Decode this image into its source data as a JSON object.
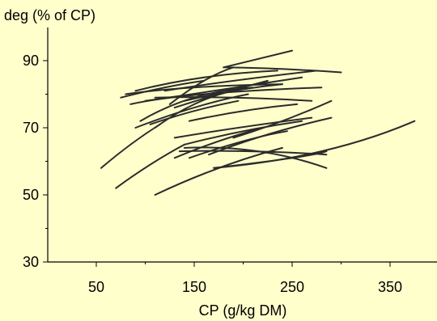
{
  "chart_data": {
    "type": "line",
    "title": "",
    "xlabel": "CP (g/kg DM)",
    "ylabel": "deg (% of CP)",
    "xlim": [
      0,
      400
    ],
    "ylim": [
      30,
      100
    ],
    "xticks": [
      50,
      150,
      250,
      350
    ],
    "xticks_minor": [
      100,
      200,
      300
    ],
    "xtick_labels": [
      "50",
      "150",
      "250",
      "350"
    ],
    "yticks": [
      30,
      50,
      70,
      90
    ],
    "yticks_minor": [
      40,
      60,
      80
    ],
    "ytick_labels": [
      "30",
      "50",
      "70",
      "90"
    ],
    "grid": false,
    "legend": false,
    "line_color": "#2b2b2b",
    "background": "#FFFFCC",
    "series": [
      {
        "x": [
          180,
          215,
          250
        ],
        "y": [
          88,
          90.5,
          93
        ]
      },
      {
        "x": [
          180,
          240,
          300
        ],
        "y": [
          88,
          87.5,
          86.5
        ]
      },
      {
        "x": [
          75,
          120,
          160
        ],
        "y": [
          79,
          82,
          84
        ]
      },
      {
        "x": [
          80,
          150,
          240
        ],
        "y": [
          80,
          82,
          83
        ]
      },
      {
        "x": [
          90,
          160,
          235
        ],
        "y": [
          81,
          85,
          87
        ]
      },
      {
        "x": [
          120,
          190,
          275
        ],
        "y": [
          81,
          84,
          87
        ]
      },
      {
        "x": [
          100,
          170,
          260
        ],
        "y": [
          78,
          81,
          85
        ]
      },
      {
        "x": [
          85,
          160,
          280
        ],
        "y": [
          77,
          80,
          82
        ]
      },
      {
        "x": [
          110,
          190,
          270
        ],
        "y": [
          79,
          79,
          78
        ]
      },
      {
        "x": [
          95,
          150,
          210
        ],
        "y": [
          72,
          79,
          82
        ]
      },
      {
        "x": [
          90,
          150,
          205
        ],
        "y": [
          70,
          76,
          80
        ]
      },
      {
        "x": [
          125,
          160,
          190
        ],
        "y": [
          77,
          84,
          88
        ]
      },
      {
        "x": [
          110,
          150,
          190
        ],
        "y": [
          70,
          77,
          81
        ]
      },
      {
        "x": [
          130,
          175,
          225
        ],
        "y": [
          76,
          80,
          84
        ]
      },
      {
        "x": [
          105,
          150,
          195
        ],
        "y": [
          71,
          75,
          78
        ]
      },
      {
        "x": [
          140,
          190,
          240
        ],
        "y": [
          78,
          81,
          83
        ]
      },
      {
        "x": [
          145,
          200,
          255
        ],
        "y": [
          72,
          75,
          77
        ]
      },
      {
        "x": [
          130,
          195,
          270
        ],
        "y": [
          67,
          70,
          73
        ]
      },
      {
        "x": [
          165,
          225,
          290
        ],
        "y": [
          62,
          68,
          73
        ]
      },
      {
        "x": [
          190,
          240,
          290
        ],
        "y": [
          67,
          72,
          78
        ]
      },
      {
        "x": [
          55,
          85,
          115
        ],
        "y": [
          58,
          65,
          71
        ]
      },
      {
        "x": [
          70,
          105,
          140
        ],
        "y": [
          52,
          59,
          65
        ]
      },
      {
        "x": [
          110,
          175,
          240
        ],
        "y": [
          50,
          58,
          64
        ]
      },
      {
        "x": [
          130,
          175,
          220
        ],
        "y": [
          61,
          66,
          70
        ]
      },
      {
        "x": [
          140,
          200,
          260
        ],
        "y": [
          65,
          69,
          72
        ]
      },
      {
        "x": [
          135,
          210,
          285
        ],
        "y": [
          63,
          63,
          62
        ]
      },
      {
        "x": [
          145,
          200,
          245
        ],
        "y": [
          61,
          66,
          69
        ]
      },
      {
        "x": [
          170,
          250,
          285
        ],
        "y": [
          58,
          61,
          63
        ]
      },
      {
        "x": [
          170,
          280,
          375
        ],
        "y": [
          58,
          63,
          72
        ]
      },
      {
        "x": [
          140,
          215,
          285
        ],
        "y": [
          64,
          63,
          58
        ]
      }
    ]
  }
}
